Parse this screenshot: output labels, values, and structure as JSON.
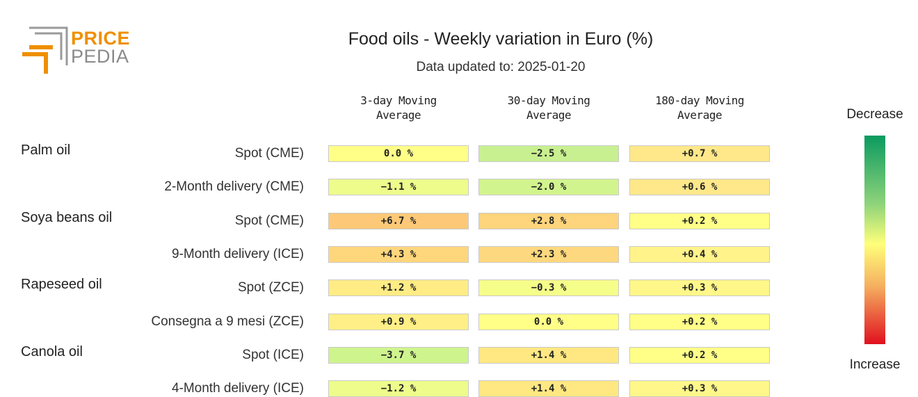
{
  "logo": {
    "line1": "PRICE",
    "line2": "PEDIA",
    "accent": "#ef8f00",
    "grey": "#8a8a8a"
  },
  "header": {
    "title": "Food oils - Weekly variation in Euro (%)",
    "subtitle": "Data updated to: 2025-01-20"
  },
  "legend": {
    "top_label": "Decrease",
    "bottom_label": "Increase"
  },
  "chart_data": {
    "type": "heatmap",
    "title": "Food oils - Weekly variation in Euro (%)",
    "subtitle": "Data updated to: 2025-01-20",
    "columns": [
      "3-day Moving\nAverage",
      "30-day Moving\nAverage",
      "180-day Moving\nAverage"
    ],
    "color_scale": {
      "low_label": "Decrease",
      "high_label": "Increase",
      "low_color": "#0a9a60",
      "mid_color": "#ffff7a",
      "high_color": "#e0101e"
    },
    "groups": [
      {
        "name": "Palm oil",
        "rows": [
          {
            "label": "Spot (CME)",
            "values": [
              "0.0 %",
              "−2.5 %",
              "+0.7 %"
            ],
            "colors": [
              "#ffff88",
              "#c8f090",
              "#ffe88a"
            ]
          },
          {
            "label": "2-Month delivery (CME)",
            "values": [
              "−1.1 %",
              "−2.0 %",
              "+0.6 %"
            ],
            "colors": [
              "#eefc8c",
              "#d2f48e",
              "#ffe88a"
            ]
          }
        ]
      },
      {
        "name": "Soya beans oil",
        "rows": [
          {
            "label": "Spot (CME)",
            "values": [
              "+6.7 %",
              "+2.8 %",
              "+0.2 %"
            ],
            "colors": [
              "#fdc978",
              "#fed47c",
              "#ffff88"
            ]
          },
          {
            "label": "9-Month delivery (ICE)",
            "values": [
              "+4.3 %",
              "+2.3 %",
              "+0.4 %"
            ],
            "colors": [
              "#fed67c",
              "#fed87e",
              "#fff38a"
            ]
          }
        ]
      },
      {
        "name": "Rapeseed oil",
        "rows": [
          {
            "label": "Spot (ZCE)",
            "values": [
              "+1.2 %",
              "−0.3 %",
              "+0.3 %"
            ],
            "colors": [
              "#ffec84",
              "#f6fe8a",
              "#fff78a"
            ]
          },
          {
            "label": "Consegna a 9 mesi (ZCE)",
            "values": [
              "+0.9 %",
              "0.0 %",
              "+0.2 %"
            ],
            "colors": [
              "#ffef86",
              "#ffff88",
              "#ffff88"
            ]
          }
        ]
      },
      {
        "name": "Canola oil",
        "rows": [
          {
            "label": "Spot (ICE)",
            "values": [
              "−3.7 %",
              "+1.4 %",
              "+0.2 %"
            ],
            "colors": [
              "#cef48e",
              "#ffe882",
              "#ffff88"
            ]
          },
          {
            "label": "4-Month delivery (ICE)",
            "values": [
              "−1.2 %",
              "+1.4 %",
              "+0.3 %"
            ],
            "colors": [
              "#eefc8c",
              "#ffe882",
              "#fff78a"
            ]
          }
        ]
      }
    ]
  }
}
